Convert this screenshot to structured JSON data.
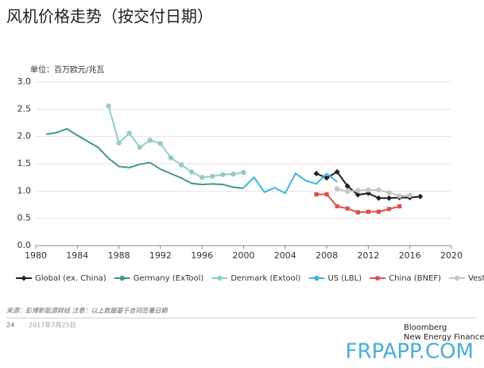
{
  "chart_data": {
    "type": "line",
    "title": "风机价格走势（按交付日期）",
    "unit_label": "单位：百万欧元/兆瓦",
    "source": "来源：彭博新能源财经 注意：以上数据基于合同签署日期",
    "page_number": "24",
    "date": "2017年7月25日",
    "brand": [
      "Bloomberg",
      "New Energy Finance"
    ],
    "watermark": "FRPAPP.COM",
    "xlim": [
      1980,
      2020
    ],
    "xticks": [
      1980,
      1984,
      1988,
      1992,
      1996,
      2000,
      2004,
      2008,
      2012,
      2016,
      2020
    ],
    "ylim": [
      0,
      3
    ],
    "yticks": [
      {
        "value": 0,
        "label": "0.0"
      },
      {
        "value": 0.5,
        "label": "0.5"
      },
      {
        "value": 1,
        "label": "1.0"
      },
      {
        "value": 1.5,
        "label": "1.5"
      },
      {
        "value": 2,
        "label": "2.0"
      },
      {
        "value": 2.5,
        "label": "2.5"
      },
      {
        "value": 3,
        "label": "3.0"
      }
    ],
    "grid": true,
    "legend": "bottom",
    "series": [
      {
        "name": "Global (ex. China)",
        "color": "#222222",
        "marker": "diamond",
        "x": [
          2007,
          2008,
          2009,
          2010,
          2011,
          2012,
          2013,
          2014,
          2015,
          2016,
          2017
        ],
        "values": [
          1.32,
          1.24,
          1.35,
          1.09,
          0.93,
          0.96,
          0.87,
          0.87,
          0.88,
          0.88,
          0.9
        ]
      },
      {
        "name": "Germany (ExTool)",
        "color": "#3f9b7c",
        "marker": "none",
        "x": [
          1981,
          1982,
          1983,
          1984,
          1985,
          1986,
          1987,
          1988,
          1989,
          1990,
          1991,
          1992,
          1993,
          1994,
          1995,
          1996,
          1997,
          1998,
          1999,
          2000
        ],
        "values": [
          2.04,
          2.07,
          2.14,
          2.02,
          1.91,
          1.8,
          1.6,
          1.45,
          1.43,
          1.49,
          1.52,
          1.4,
          1.32,
          1.24,
          1.14,
          1.12,
          1.13,
          1.12,
          1.07,
          1.05
        ]
      },
      {
        "name": "Denmark (Extool)",
        "color": "#8fd1b6",
        "marker": "circle",
        "x": [
          1987,
          1988,
          1989,
          1990,
          1991,
          1992,
          1993,
          1994,
          1995,
          1996,
          1997,
          1998,
          1999,
          2000
        ],
        "values": [
          2.56,
          1.88,
          2.06,
          1.8,
          1.93,
          1.87,
          1.61,
          1.48,
          1.35,
          1.25,
          1.27,
          1.3,
          1.31,
          1.34
        ]
      },
      {
        "name": "US (LBL)",
        "color": "#3bb8d8",
        "marker": "none",
        "x": [
          2000,
          2001,
          2002,
          2003,
          2004,
          2005,
          2006,
          2007,
          2008,
          2009
        ],
        "values": [
          1.06,
          1.25,
          0.98,
          1.06,
          0.96,
          1.32,
          1.19,
          1.13,
          1.32,
          1.17
        ]
      },
      {
        "name": "China (BNEF)",
        "color": "#d9504f",
        "marker": "square",
        "x": [
          2007,
          2008,
          2009,
          2010,
          2011,
          2012,
          2013,
          2014,
          2015
        ],
        "values": [
          0.94,
          0.94,
          0.72,
          0.68,
          0.61,
          0.62,
          0.62,
          0.67,
          0.72
        ]
      },
      {
        "name": "Vestas global",
        "color": "#c4c4c4",
        "marker": "circle",
        "x": [
          2009,
          2010,
          2011,
          2012,
          2013,
          2014,
          2015,
          2016
        ],
        "values": [
          1.04,
          0.99,
          1.01,
          1.02,
          1.02,
          0.97,
          0.91,
          0.92
        ]
      }
    ]
  }
}
